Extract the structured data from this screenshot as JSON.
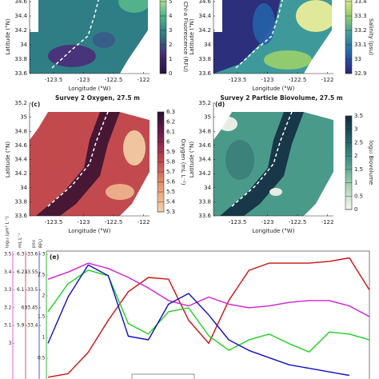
{
  "chart_data": [
    {
      "type": "map",
      "xlabel": "Longitude (°W)",
      "ylabel": "Latitude (°N)",
      "xlim": [
        -123.9,
        -121.9
      ],
      "xticks": [
        -123.5,
        -123,
        -122.5,
        -122
      ],
      "ylim": [
        33.6,
        34.7
      ],
      "yticks": [
        33.6,
        33.8,
        34,
        34.2,
        34.4,
        34.6
      ],
      "colorbar": {
        "label": "Chl-a Fluorescence (RFU)",
        "lim": [
          0,
          5.5
        ],
        "ticks": [
          0,
          1,
          2,
          3,
          4,
          5
        ],
        "colors": [
          "#2a1040",
          "#4a2c78",
          "#2f7e86",
          "#58b889",
          "#d7e79a"
        ]
      }
    },
    {
      "type": "map",
      "xlabel": "Longitude (°W)",
      "ylabel": "Latitude (°N)",
      "xlim": [
        -123.9,
        -121.9
      ],
      "xticks": [
        -123.5,
        -123,
        -122.5,
        -122
      ],
      "ylim": [
        33.6,
        34.7
      ],
      "yticks": [
        33.6,
        33.8,
        34,
        34.2,
        34.4,
        34.6
      ],
      "colorbar": {
        "label": "Salinity (psu)",
        "lim": [
          32.9,
          33.45
        ],
        "ticks": [
          32.9,
          33,
          33.1,
          33.2,
          33.3,
          33.4
        ],
        "colors": [
          "#2a2378",
          "#2562a8",
          "#3e9a9a",
          "#9bcf6c",
          "#f2f19a"
        ]
      }
    },
    {
      "type": "map",
      "panel": "(c)",
      "title": "Survey 2 Oxygen, 27.5 m",
      "xlabel": "Longitude (°W)",
      "ylabel": "Latitude (°N)",
      "xlim": [
        -123.9,
        -121.9
      ],
      "xticks": [
        -123.5,
        -123,
        -122.5,
        -122
      ],
      "ylim": [
        33.6,
        35.2
      ],
      "yticks": [
        33.6,
        33.8,
        34,
        34.2,
        34.4,
        34.6,
        34.8,
        35,
        35.2
      ],
      "colorbar": {
        "label": "Oxygen (mL L⁻¹)",
        "lim": [
          5.3,
          6.3
        ],
        "ticks": [
          5.3,
          5.4,
          5.5,
          5.6,
          5.7,
          5.8,
          5.9,
          6,
          6.1,
          6.2,
          6.3
        ],
        "colors": [
          "#f3d3a8",
          "#e79a72",
          "#c24a4e",
          "#7a1f4e",
          "#2b0f2e"
        ]
      }
    },
    {
      "type": "map",
      "panel": "(d)",
      "title": "Survey 2 Particle Biovolume, 27.5 m",
      "xlabel": "Longitude (°W)",
      "ylabel": "Latitude (°N)",
      "xlim": [
        -123.9,
        -121.9
      ],
      "xticks": [
        -123.5,
        -123,
        -122.5,
        -122
      ],
      "ylim": [
        33.6,
        35.2
      ],
      "yticks": [
        33.6,
        33.8,
        34,
        34.2,
        34.4,
        34.6,
        34.8,
        35,
        35.2
      ],
      "colorbar": {
        "label": "log₁₀ Biovolume",
        "lim": [
          0,
          3.5
        ],
        "ticks": [
          0,
          0.5,
          1,
          1.5,
          2,
          2.5,
          3,
          3.5
        ],
        "colors": [
          "#f7f6ef",
          "#a9d5b0",
          "#4a9a8a",
          "#23606a",
          "#132c40"
        ]
      }
    },
    {
      "type": "line",
      "panel": "(e)",
      "axes": [
        {
          "label": "log₁₀ (µm³ L⁻¹)",
          "color": "#d020d0",
          "lim": [
            2.8,
            3.5
          ],
          "ticks": [
            3,
            3.1,
            3.2,
            3.3,
            3.4,
            3.5
          ]
        },
        {
          "label": "mL L⁻¹",
          "color": "#cc1010",
          "lim": [
            5.6,
            6.3
          ],
          "ticks": [
            5.9,
            6,
            6.1,
            6.2,
            6.3
          ]
        },
        {
          "label": "psu",
          "color": "#1010c0",
          "lim": [
            33.25,
            33.6
          ],
          "ticks": [
            33.4,
            33.45,
            33.5,
            33.55,
            33.6
          ]
        },
        {
          "label": "RFU",
          "color": "#20d020",
          "lim": [
            0,
            3
          ],
          "ticks": [
            0.5,
            1,
            1.5,
            2,
            2.5,
            3
          ]
        }
      ],
      "series": [
        {
          "color": "#cc1010",
          "axis": 1,
          "values": [
            5.61,
            5.63,
            5.75,
            5.93,
            6.09,
            6.17,
            6.16,
            5.93,
            5.8,
            6.04,
            6.21,
            6.25,
            6.25,
            6.25,
            6.26,
            6.28,
            6.1
          ]
        },
        {
          "color": "#d020d0",
          "axis": 0,
          "values": [
            3.36,
            3.4,
            3.45,
            3.42,
            3.37,
            3.31,
            3.24,
            3.21,
            3.26,
            3.22,
            3.2,
            3.21,
            3.23,
            3.24,
            3.24,
            3.21,
            3.15
          ]
        },
        {
          "color": "#20d020",
          "axis": 3,
          "values": [
            1.62,
            2.29,
            2.62,
            2.48,
            1.33,
            1.08,
            1.62,
            1.71,
            1.04,
            0.69,
            0.94,
            1.08,
            0.85,
            0.65,
            1.13,
            1.08,
            0.94
          ]
        },
        {
          "color": "#1010c0",
          "axis": 2,
          "values": [
            33.35,
            33.48,
            33.57,
            33.54,
            33.37,
            33.36,
            33.46,
            33.49,
            33.43,
            33.36,
            33.33,
            33.31,
            33.29,
            33.28,
            33.27,
            33.26,
            null
          ]
        }
      ]
    }
  ]
}
